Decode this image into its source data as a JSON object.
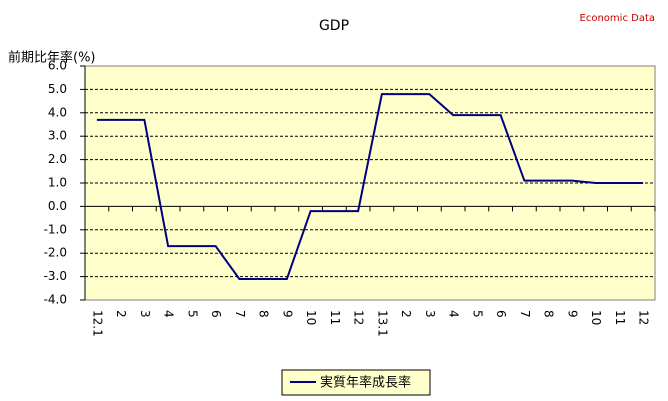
{
  "chart_data": {
    "type": "line",
    "title": "GDP",
    "annotation": "Economic Data",
    "y_label": "前期比年率(%)",
    "categories": [
      "12.1",
      "2",
      "3",
      "4",
      "5",
      "6",
      "7",
      "8",
      "9",
      "10",
      "11",
      "12",
      "13.1",
      "2",
      "3",
      "4",
      "5",
      "6",
      "7",
      "8",
      "9",
      "10",
      "11",
      "12"
    ],
    "series": [
      {
        "name": "実質年率成長率",
        "color": "#000080",
        "values": [
          3.7,
          3.7,
          3.7,
          -1.7,
          -1.7,
          -1.7,
          -3.1,
          -3.1,
          -3.1,
          -0.2,
          -0.2,
          -0.2,
          4.8,
          4.8,
          4.8,
          3.9,
          3.9,
          3.9,
          1.1,
          1.1,
          1.1,
          1.0,
          1.0,
          1.0
        ]
      }
    ],
    "ylim": [
      -4,
      6
    ],
    "yticks": [
      {
        "value": -4,
        "label": "-4.0"
      },
      {
        "value": -3,
        "label": "-3.0"
      },
      {
        "value": -2,
        "label": "-2.0"
      },
      {
        "value": -1,
        "label": "-1.0"
      },
      {
        "value": 0,
        "label": "0.0"
      },
      {
        "value": 1,
        "label": "1.0"
      },
      {
        "value": 2,
        "label": "2.0"
      },
      {
        "value": 3,
        "label": "3.0"
      },
      {
        "value": 4,
        "label": "4.0"
      },
      {
        "value": 5,
        "label": "5.0"
      },
      {
        "value": 6,
        "label": "6.0"
      }
    ],
    "grid": true,
    "plot_background": "#ffffcc",
    "annotation_color": "#cc0000"
  }
}
